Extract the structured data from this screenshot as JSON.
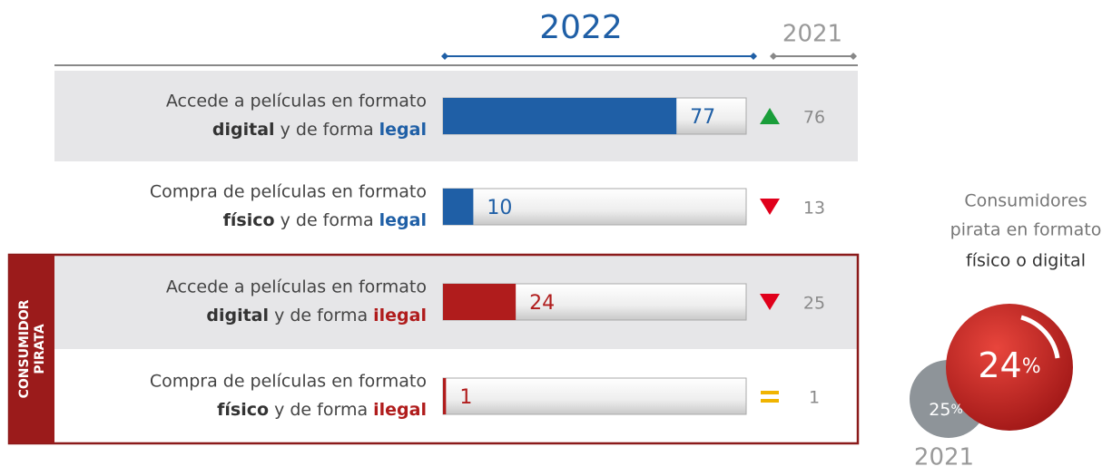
{
  "chart_data": {
    "type": "bar",
    "title": "2022",
    "compare_title": "2021",
    "group_label": [
      "CONSUMIDOR",
      "PIRATA"
    ],
    "categories": [
      {
        "line1": "Accede a películas en formato",
        "bold": "digital",
        "mid": "y de forma",
        "emph": "legal"
      },
      {
        "line1": "Compra de películas en formato",
        "bold": "físico",
        "mid": "y de forma",
        "emph": "legal"
      },
      {
        "line1": "Accede a películas en formato",
        "bold": "digital",
        "mid": "y de forma",
        "emph": "ilegal"
      },
      {
        "line1": "Compra de películas en formato",
        "bold": "físico",
        "mid": "y de forma",
        "emph": "ilegal"
      }
    ],
    "series": [
      {
        "name": "2022",
        "colors": [
          "#1f5fa6",
          "#1f5fa6",
          "#b01c1c",
          "#b01c1c"
        ],
        "values": [
          77,
          10,
          24,
          1
        ]
      },
      {
        "name": "2021",
        "color": "#8a8a8a",
        "values": [
          76,
          13,
          25,
          1
        ]
      }
    ],
    "xlim": [
      0,
      100
    ],
    "side": {
      "caption": [
        "Consumidores",
        "pirata en formato",
        "físico o digital"
      ],
      "values": [
        24,
        25
      ],
      "unit": "%",
      "compare_title": "2021"
    }
  }
}
